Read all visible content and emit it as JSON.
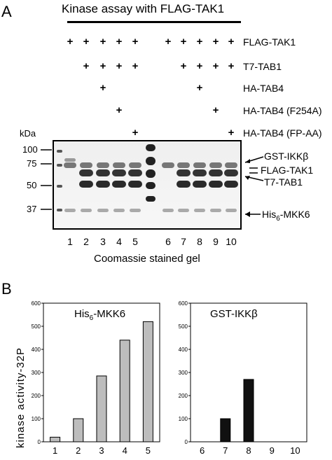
{
  "panel_a": {
    "letter": "A",
    "header": "Kinase assay with FLAG-TAK1",
    "rows": [
      {
        "label": "FLAG-TAK1",
        "plus_lanes": [
          1,
          2,
          3,
          4,
          5,
          6,
          7,
          8,
          9,
          10
        ]
      },
      {
        "label": "T7-TAB1",
        "plus_lanes": [
          2,
          3,
          4,
          5,
          7,
          8,
          9,
          10
        ]
      },
      {
        "label": "HA-TAB4",
        "plus_lanes": [
          3,
          8
        ]
      },
      {
        "label": "HA-TAB4 (F254A)",
        "plus_lanes": [
          4,
          9
        ]
      },
      {
        "label": "HA-TAB4 (FP-AA)",
        "plus_lanes": [
          5,
          10
        ]
      }
    ],
    "plus_symbol": "+",
    "kda_label": "kDa",
    "markers": [
      "100",
      "75",
      "50",
      "37"
    ],
    "bands": [
      "GST-IKKβ",
      "FLAG-TAK1",
      "T7-TAB1"
    ],
    "mkk6_prefix": "His",
    "mkk6_sub": "6",
    "mkk6_suffix": "-MKK6",
    "lanes": [
      "1",
      "2",
      "3",
      "4",
      "5",
      "6",
      "7",
      "8",
      "9",
      "10"
    ],
    "caption": "Coomassie stained gel"
  },
  "panel_b": {
    "letter": "B",
    "ylabel_main": "kinase activity-",
    "ylabel_sup": "32P"
  },
  "chart_data": [
    {
      "type": "bar",
      "title_prefix": "His",
      "title_sub": "6",
      "title_suffix": "-MKK6",
      "categories": [
        "1",
        "2",
        "3",
        "4",
        "5"
      ],
      "values": [
        20,
        100,
        285,
        440,
        520
      ],
      "ylim": [
        0,
        600
      ],
      "yticks": [
        0,
        100,
        200,
        300,
        400,
        500,
        600
      ],
      "bar_color": "#bdbdbd"
    },
    {
      "type": "bar",
      "title": "GST-IKKβ",
      "categories": [
        "6",
        "7",
        "8",
        "9",
        "10"
      ],
      "values": [
        0,
        100,
        270,
        0,
        0
      ],
      "ylim": [
        0,
        600
      ],
      "yticks": [
        0,
        100,
        200,
        300,
        400,
        500,
        600
      ],
      "bar_color": "#111111"
    }
  ]
}
